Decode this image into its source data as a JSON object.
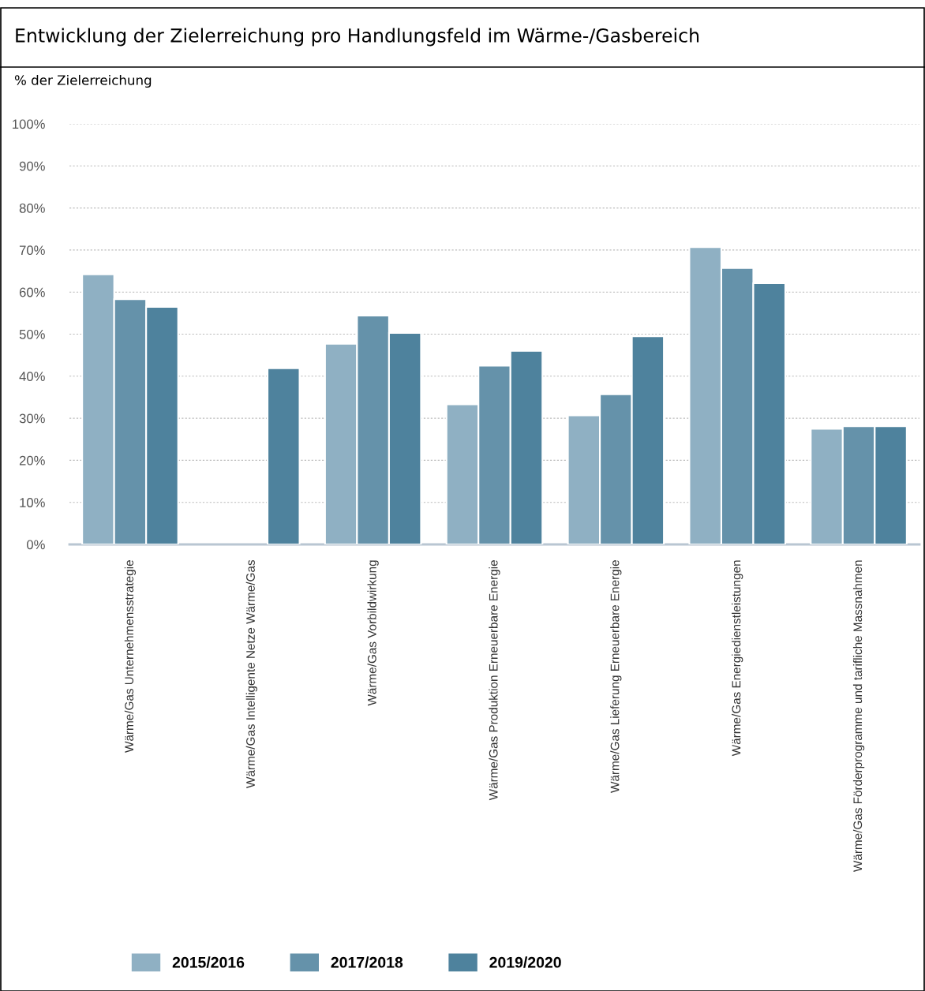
{
  "chart_data": {
    "type": "bar",
    "title": "Entwicklung der Zielerreichung pro Handlungsfeld im Wärme-/Gasbereich",
    "ylabel": "% der Zielerreichung",
    "categories": [
      "Wärme/Gas Unternehmensstrategie",
      "Wärme/Gas Intelligente Netze Wärme/Gas",
      "Wärme/Gas Vorbildwirkung",
      "Wärme/Gas Produktion Erneuerbare Energie",
      "Wärme/Gas Lieferung Erneuerbare Energie",
      "Wärme/Gas Energiedienstleistungen",
      "Wärme/Gas Förderprogramme und tarifliche Massnahmen"
    ],
    "series": [
      {
        "name": "2015/2016",
        "color": "#8fb0c3",
        "values": [
          64.2,
          null,
          47.7,
          33.3,
          30.7,
          70.7,
          27.5
        ]
      },
      {
        "name": "2017/2018",
        "color": "#6592aa",
        "values": [
          58.3,
          null,
          54.4,
          42.5,
          35.7,
          65.7,
          28.1
        ]
      },
      {
        "name": "2019/2020",
        "color": "#4e829d",
        "values": [
          56.5,
          41.9,
          50.3,
          46.0,
          49.5,
          62.1,
          28.1
        ]
      }
    ],
    "ylim": [
      0,
      100
    ],
    "yticks": [
      {
        "value": 0,
        "label": "0%"
      },
      {
        "value": 10,
        "label": "10%"
      },
      {
        "value": 20,
        "label": "20%"
      },
      {
        "value": 30,
        "label": "30%"
      },
      {
        "value": 40,
        "label": "40%"
      },
      {
        "value": 50,
        "label": "50%"
      },
      {
        "value": 60,
        "label": "60%"
      },
      {
        "value": 70,
        "label": "70%"
      },
      {
        "value": 80,
        "label": "80%"
      },
      {
        "value": 90,
        "label": "90%"
      },
      {
        "value": 100,
        "label": "100%"
      }
    ],
    "grid": "y",
    "legend": "bottom"
  }
}
